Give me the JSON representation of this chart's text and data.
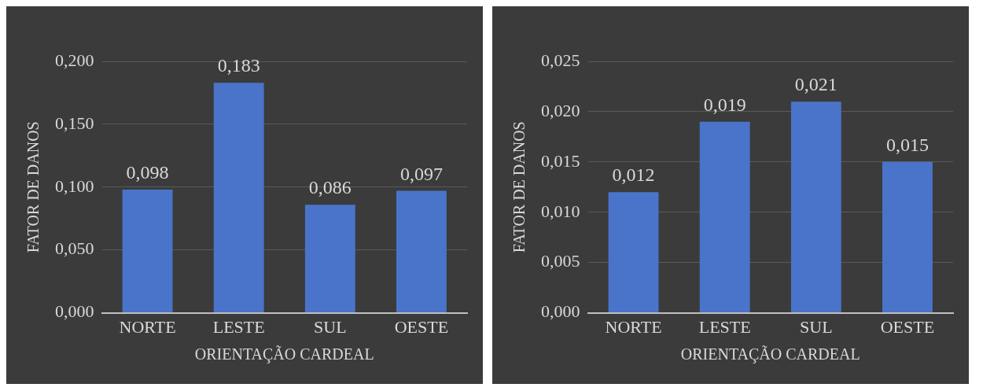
{
  "chart_data": [
    {
      "type": "bar",
      "xlabel": "ORIENTAÇÃO CARDEAL",
      "ylabel": "FATOR DE DANOS",
      "categories": [
        "NORTE",
        "LESTE",
        "SUL",
        "OESTE"
      ],
      "values": [
        0.098,
        0.183,
        0.086,
        0.097
      ],
      "value_labels": [
        "0,098",
        "0,183",
        "0,086",
        "0,097"
      ],
      "color": "#4a74c9",
      "ylim": [
        0,
        0.2
      ],
      "yticks": [
        {
          "value": 0,
          "label": "0,000"
        },
        {
          "value": 0.05,
          "label": "0,050"
        },
        {
          "value": 0.1,
          "label": "0,100"
        },
        {
          "value": 0.15,
          "label": "0,150"
        },
        {
          "value": 0.2,
          "label": "0,200"
        }
      ],
      "grid": "y",
      "legend": false
    },
    {
      "type": "bar",
      "xlabel": "ORIENTAÇÃO CARDEAL",
      "ylabel": "FATOR DE DANOS",
      "categories": [
        "NORTE",
        "LESTE",
        "SUL",
        "OESTE"
      ],
      "values": [
        0.012,
        0.019,
        0.021,
        0.015
      ],
      "value_labels": [
        "0,012",
        "0,019",
        "0,021",
        "0,015"
      ],
      "color": "#4a74c9",
      "ylim": [
        0,
        0.025
      ],
      "yticks": [
        {
          "value": 0,
          "label": "0,000"
        },
        {
          "value": 0.005,
          "label": "0,005"
        },
        {
          "value": 0.01,
          "label": "0,010"
        },
        {
          "value": 0.015,
          "label": "0,015"
        },
        {
          "value": 0.02,
          "label": "0,020"
        },
        {
          "value": 0.025,
          "label": "0,025"
        }
      ],
      "grid": "y",
      "legend": false
    }
  ]
}
